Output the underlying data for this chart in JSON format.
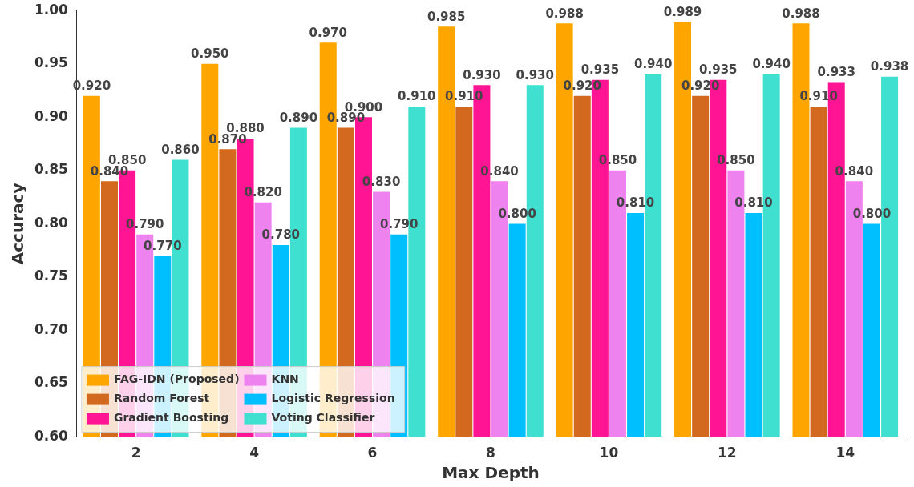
{
  "chart_data": {
    "type": "bar",
    "xlabel": "Max Depth",
    "ylabel": "Accuracy",
    "categories": [
      "2",
      "4",
      "6",
      "8",
      "10",
      "12",
      "14"
    ],
    "ylim": [
      0.6,
      1.0
    ],
    "yticks": [
      {
        "value": 0.6,
        "label": "0.60"
      },
      {
        "value": 0.65,
        "label": "0.65"
      },
      {
        "value": 0.7,
        "label": "0.70"
      },
      {
        "value": 0.75,
        "label": "0.75"
      },
      {
        "value": 0.8,
        "label": "0.80"
      },
      {
        "value": 0.85,
        "label": "0.85"
      },
      {
        "value": 0.9,
        "label": "0.90"
      },
      {
        "value": 0.95,
        "label": "0.95"
      },
      {
        "value": 1.0,
        "label": "1.00"
      }
    ],
    "grid": false,
    "legend": "bottom left",
    "series": [
      {
        "name": "FAG-IDN (Proposed)",
        "color": "#ffa500",
        "values": [
          0.92,
          0.95,
          0.97,
          0.985,
          0.988,
          0.989,
          0.988
        ],
        "value_labels": [
          "0.920",
          "0.950",
          "0.970",
          "0.985",
          "0.988",
          "0.989",
          "0.988"
        ]
      },
      {
        "name": "Random Forest",
        "color": "#d2691e",
        "values": [
          0.84,
          0.87,
          0.89,
          0.91,
          0.92,
          0.92,
          0.91
        ],
        "value_labels": [
          "0.840",
          "0.870",
          "0.890",
          "0.910",
          "0.920",
          "0.920",
          "0.910"
        ]
      },
      {
        "name": "Gradient Boosting",
        "color": "#ff1493",
        "values": [
          0.85,
          0.88,
          0.9,
          0.93,
          0.935,
          0.935,
          0.933
        ],
        "value_labels": [
          "0.850",
          "0.880",
          "0.900",
          "0.930",
          "0.935",
          "0.935",
          "0.933"
        ]
      },
      {
        "name": "KNN",
        "color": "#ee82ee",
        "values": [
          0.79,
          0.82,
          0.83,
          0.84,
          0.85,
          0.85,
          0.84
        ],
        "value_labels": [
          "0.790",
          "0.820",
          "0.830",
          "0.840",
          "0.850",
          "0.850",
          "0.840"
        ]
      },
      {
        "name": "Logistic Regression",
        "color": "#00bfff",
        "values": [
          0.77,
          0.78,
          0.79,
          0.8,
          0.81,
          0.81,
          0.8
        ],
        "value_labels": [
          "0.770",
          "0.780",
          "0.790",
          "0.800",
          "0.810",
          "0.810",
          "0.800"
        ]
      },
      {
        "name": "Voting Classifier",
        "color": "#40e0d0",
        "values": [
          0.86,
          0.89,
          0.91,
          0.93,
          0.94,
          0.94,
          0.938
        ],
        "value_labels": [
          "0.860",
          "0.890",
          "0.910",
          "0.930",
          "0.940",
          "0.940",
          "0.938"
        ]
      }
    ]
  }
}
